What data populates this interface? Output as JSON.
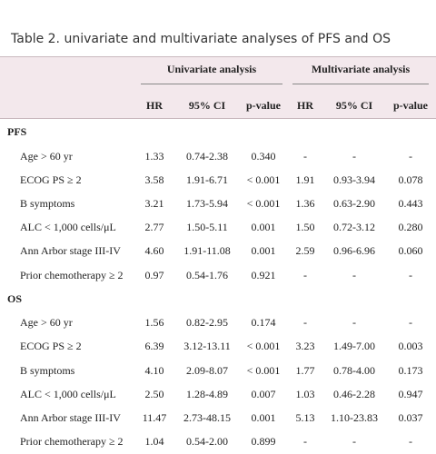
{
  "table": {
    "title": "Table 2. univariate and multivariate analyses of PFS and OS",
    "groups": [
      "Univariate analysis",
      "Multivariate analysis"
    ],
    "columns": [
      "HR",
      "95% CI",
      "p-value",
      "HR",
      "95% CI",
      "p-value"
    ],
    "sections": [
      {
        "label": "PFS",
        "rows": [
          [
            "Age > 60 yr",
            "1.33",
            "0.74-2.38",
            "0.340",
            "-",
            "-",
            "-"
          ],
          [
            "ECOG PS ≥ 2",
            "3.58",
            "1.91-6.71",
            "< 0.001",
            "1.91",
            "0.93-3.94",
            "0.078"
          ],
          [
            "B symptoms",
            "3.21",
            "1.73-5.94",
            "< 0.001",
            "1.36",
            "0.63-2.90",
            "0.443"
          ],
          [
            "ALC < 1,000 cells/μL",
            "2.77",
            "1.50-5.11",
            "0.001",
            "1.50",
            "0.72-3.12",
            "0.280"
          ],
          [
            "Ann Arbor stage III-IV",
            "4.60",
            "1.91-11.08",
            "0.001",
            "2.59",
            "0.96-6.96",
            "0.060"
          ],
          [
            "Prior chemotherapy ≥ 2",
            "0.97",
            "0.54-1.76",
            "0.921",
            "-",
            "-",
            "-"
          ]
        ]
      },
      {
        "label": "OS",
        "rows": [
          [
            "Age > 60 yr",
            "1.56",
            "0.82-2.95",
            "0.174",
            "-",
            "-",
            "-"
          ],
          [
            "ECOG PS ≥ 2",
            "6.39",
            "3.12-13.11",
            "< 0.001",
            "3.23",
            "1.49-7.00",
            "0.003"
          ],
          [
            "B symptoms",
            "4.10",
            "2.09-8.07",
            "< 0.001",
            "1.77",
            "0.78-4.00",
            "0.173"
          ],
          [
            "ALC < 1,000 cells/μL",
            "2.50",
            "1.28-4.89",
            "0.007",
            "1.03",
            "0.46-2.28",
            "0.947"
          ],
          [
            "Ann Arbor stage III-IV",
            "11.47",
            "2.73-48.15",
            "0.001",
            "5.13",
            "1.10-23.83",
            "0.037"
          ],
          [
            "Prior chemotherapy ≥ 2",
            "1.04",
            "0.54-2.00",
            "0.899",
            "-",
            "-",
            "-"
          ]
        ]
      }
    ]
  }
}
